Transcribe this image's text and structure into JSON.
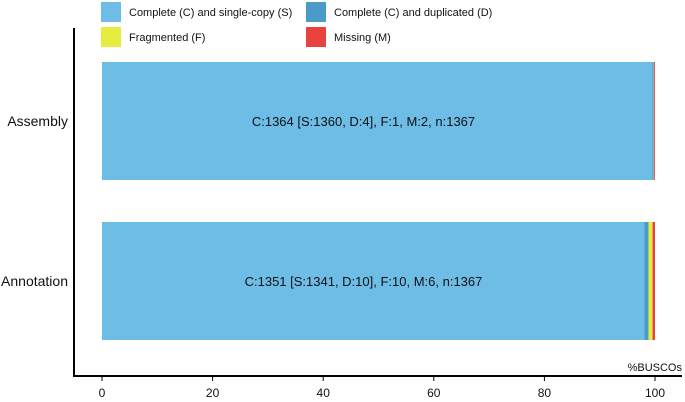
{
  "chart_data": {
    "type": "bar",
    "orientation": "horizontal",
    "stacked": true,
    "xlabel": "%BUSCOs",
    "ylabel": "",
    "title": "",
    "xlim": [
      0,
      100
    ],
    "xticks": [
      0,
      20,
      40,
      60,
      80,
      100
    ],
    "grid": false,
    "legend_position": "top",
    "categories": [
      "Assembly",
      "Annotation"
    ],
    "series": [
      {
        "name": "Complete (C) and single-copy (S)",
        "color": "#6dbde7",
        "values": [
          99.49,
          98.1
        ]
      },
      {
        "name": "Complete (C) and duplicated (D)",
        "color": "#4a9bc7",
        "values": [
          0.29,
          0.73
        ]
      },
      {
        "name": "Fragmented (F)",
        "color": "#e7ed3f",
        "values": [
          0.07,
          0.73
        ]
      },
      {
        "name": "Missing (M)",
        "color": "#e8413e",
        "values": [
          0.15,
          0.44
        ]
      }
    ],
    "bar_labels": [
      "C:1364 [S:1360, D:4], F:1, M:2, n:1367",
      "C:1351 [S:1341, D:10], F:10, M:6, n:1367"
    ]
  }
}
